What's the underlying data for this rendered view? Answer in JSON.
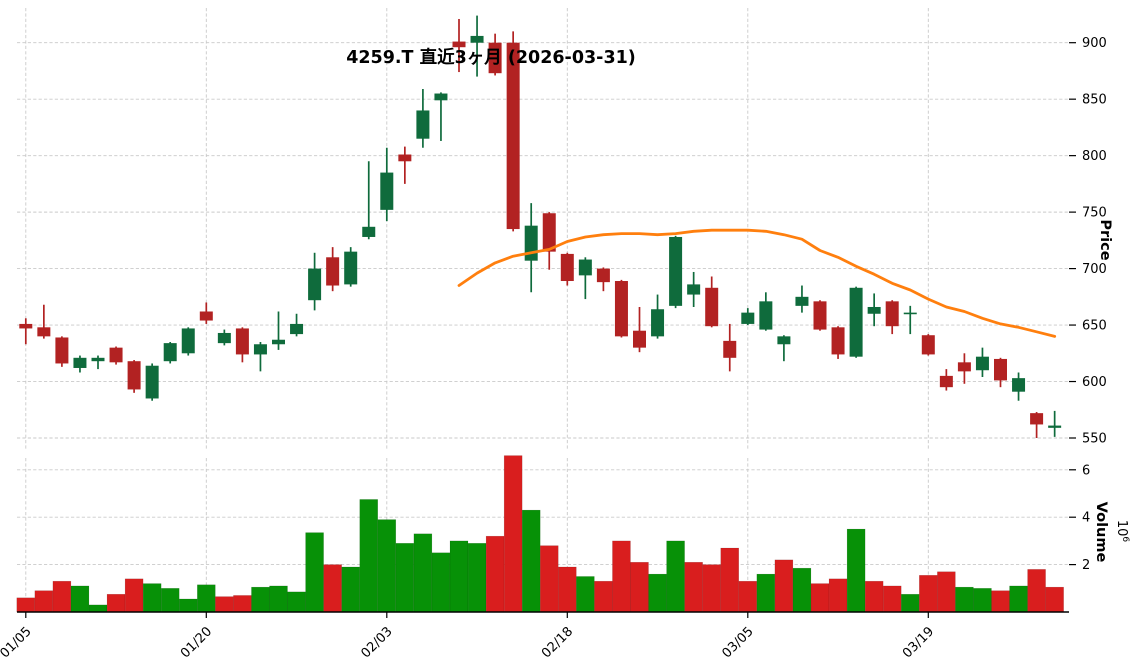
{
  "title": "4259.T 直近3ヶ月 (2026-03-31)",
  "price_axis": {
    "label": "Price",
    "ticks": [
      550,
      600,
      650,
      700,
      750,
      800,
      850,
      900
    ]
  },
  "volume_axis": {
    "label": "Volume",
    "unit_base": "10",
    "unit_exp": "6",
    "ticks": [
      2,
      4,
      6
    ]
  },
  "colors": {
    "candle_up": "#0f6b3c",
    "candle_down": "#b22222",
    "volume_up": "#079107",
    "volume_down": "#d91e1e",
    "ma_line": "#ff7f0e",
    "grid": "#c9c9c9",
    "axis": "#000000",
    "background": "#ffffff"
  },
  "chart_data": {
    "type": "candlestick",
    "title": "4259.T 直近3ヶ月 (2026-03-31)",
    "x_tick_labels": [
      "01/05",
      "01/20",
      "02/03",
      "02/18",
      "03/05",
      "03/19"
    ],
    "x_tick_indices": [
      0,
      10,
      20,
      30,
      40,
      50
    ],
    "price_ylim": [
      540,
      935
    ],
    "volume_ylim": [
      0,
      7
    ],
    "volume_unit": "10^6",
    "grid": "dashed",
    "ma_line": {
      "name": "moving-average",
      "start_index": 24,
      "values": [
        685,
        696,
        705,
        711,
        714,
        717,
        724,
        728,
        730,
        731,
        731,
        730,
        731,
        733,
        734,
        734,
        734,
        733,
        730,
        726,
        716,
        710,
        702,
        695,
        687,
        681,
        673,
        666,
        662,
        656,
        651,
        648,
        644,
        640
      ]
    },
    "candles_format": [
      "open",
      "high",
      "low",
      "close",
      "volume_millions",
      "volume_color_u_or_d"
    ],
    "candles": [
      [
        651,
        656,
        633,
        647,
        0.6,
        "d"
      ],
      [
        648,
        668,
        638,
        640,
        0.9,
        "d"
      ],
      [
        639,
        640,
        613,
        616,
        1.3,
        "d"
      ],
      [
        612,
        623,
        608,
        621,
        1.1,
        "u"
      ],
      [
        618,
        623,
        611,
        621,
        0.3,
        "u"
      ],
      [
        630,
        631,
        615,
        617,
        0.75,
        "d"
      ],
      [
        618,
        619,
        590,
        593,
        1.4,
        "d"
      ],
      [
        585,
        616,
        583,
        614,
        1.2,
        "u"
      ],
      [
        618,
        635,
        616,
        634,
        1.0,
        "u"
      ],
      [
        625,
        648,
        623,
        647,
        0.55,
        "u"
      ],
      [
        662,
        670,
        651,
        654,
        1.15,
        "u"
      ],
      [
        634,
        646,
        632,
        643,
        0.65,
        "d"
      ],
      [
        647,
        648,
        617,
        624,
        0.7,
        "d"
      ],
      [
        624,
        635,
        609,
        633,
        1.05,
        "u"
      ],
      [
        633,
        662,
        628,
        637,
        1.1,
        "u"
      ],
      [
        642,
        660,
        640,
        651,
        0.85,
        "u"
      ],
      [
        672,
        714,
        663,
        700,
        3.35,
        "u"
      ],
      [
        710,
        719,
        680,
        685,
        2.0,
        "d"
      ],
      [
        686,
        719,
        684,
        715,
        1.9,
        "u"
      ],
      [
        728,
        795,
        726,
        737,
        4.75,
        "u"
      ],
      [
        752,
        807,
        742,
        785,
        3.9,
        "u"
      ],
      [
        801,
        808,
        775,
        795,
        2.9,
        "u"
      ],
      [
        815,
        859,
        807,
        840,
        3.3,
        "u"
      ],
      [
        849,
        856,
        813,
        855,
        2.5,
        "u"
      ],
      [
        901,
        921,
        874,
        896,
        3.0,
        "u"
      ],
      [
        900,
        924,
        870,
        906,
        2.9,
        "u"
      ],
      [
        900,
        908,
        871,
        873,
        3.2,
        "d"
      ],
      [
        900,
        910,
        733,
        735,
        6.6,
        "d"
      ],
      [
        707,
        758,
        679,
        738,
        4.3,
        "u"
      ],
      [
        749,
        750,
        699,
        715,
        2.8,
        "d"
      ],
      [
        713,
        714,
        685,
        689,
        1.9,
        "d"
      ],
      [
        694,
        710,
        673,
        708,
        1.5,
        "u"
      ],
      [
        700,
        701,
        680,
        688,
        1.3,
        "d"
      ],
      [
        689,
        690,
        639,
        640,
        3.0,
        "d"
      ],
      [
        645,
        666,
        626,
        630,
        2.1,
        "d"
      ],
      [
        640,
        677,
        638,
        664,
        1.6,
        "u"
      ],
      [
        667,
        729,
        665,
        728,
        3.0,
        "u"
      ],
      [
        677,
        697,
        666,
        686,
        2.1,
        "d"
      ],
      [
        683,
        693,
        648,
        649,
        2.0,
        "d"
      ],
      [
        636,
        651,
        609,
        621,
        2.7,
        "d"
      ],
      [
        651,
        665,
        650,
        661,
        1.3,
        "d"
      ],
      [
        646,
        679,
        645,
        671,
        1.6,
        "u"
      ],
      [
        633,
        641,
        618,
        640,
        2.2,
        "d"
      ],
      [
        667,
        685,
        661,
        675,
        1.85,
        "u"
      ],
      [
        671,
        672,
        645,
        646,
        1.2,
        "d"
      ],
      [
        648,
        649,
        620,
        624,
        1.4,
        "d"
      ],
      [
        622,
        684,
        621,
        683,
        3.5,
        "u"
      ],
      [
        660,
        678,
        649,
        666,
        1.3,
        "d"
      ],
      [
        671,
        672,
        642,
        649,
        1.1,
        "d"
      ],
      [
        660,
        667,
        642,
        661,
        0.75,
        "u"
      ],
      [
        641,
        642,
        623,
        624,
        1.55,
        "d"
      ],
      [
        605,
        611,
        592,
        595,
        1.7,
        "d"
      ],
      [
        617,
        625,
        598,
        609,
        1.05,
        "u"
      ],
      [
        610,
        630,
        604,
        622,
        1.0,
        "u"
      ],
      [
        620,
        621,
        595,
        601,
        0.9,
        "d"
      ],
      [
        591,
        608,
        583,
        603,
        1.1,
        "u"
      ],
      [
        572,
        573,
        550,
        562,
        1.8,
        "d"
      ],
      [
        559,
        574,
        551,
        561,
        1.05,
        "d"
      ]
    ]
  }
}
